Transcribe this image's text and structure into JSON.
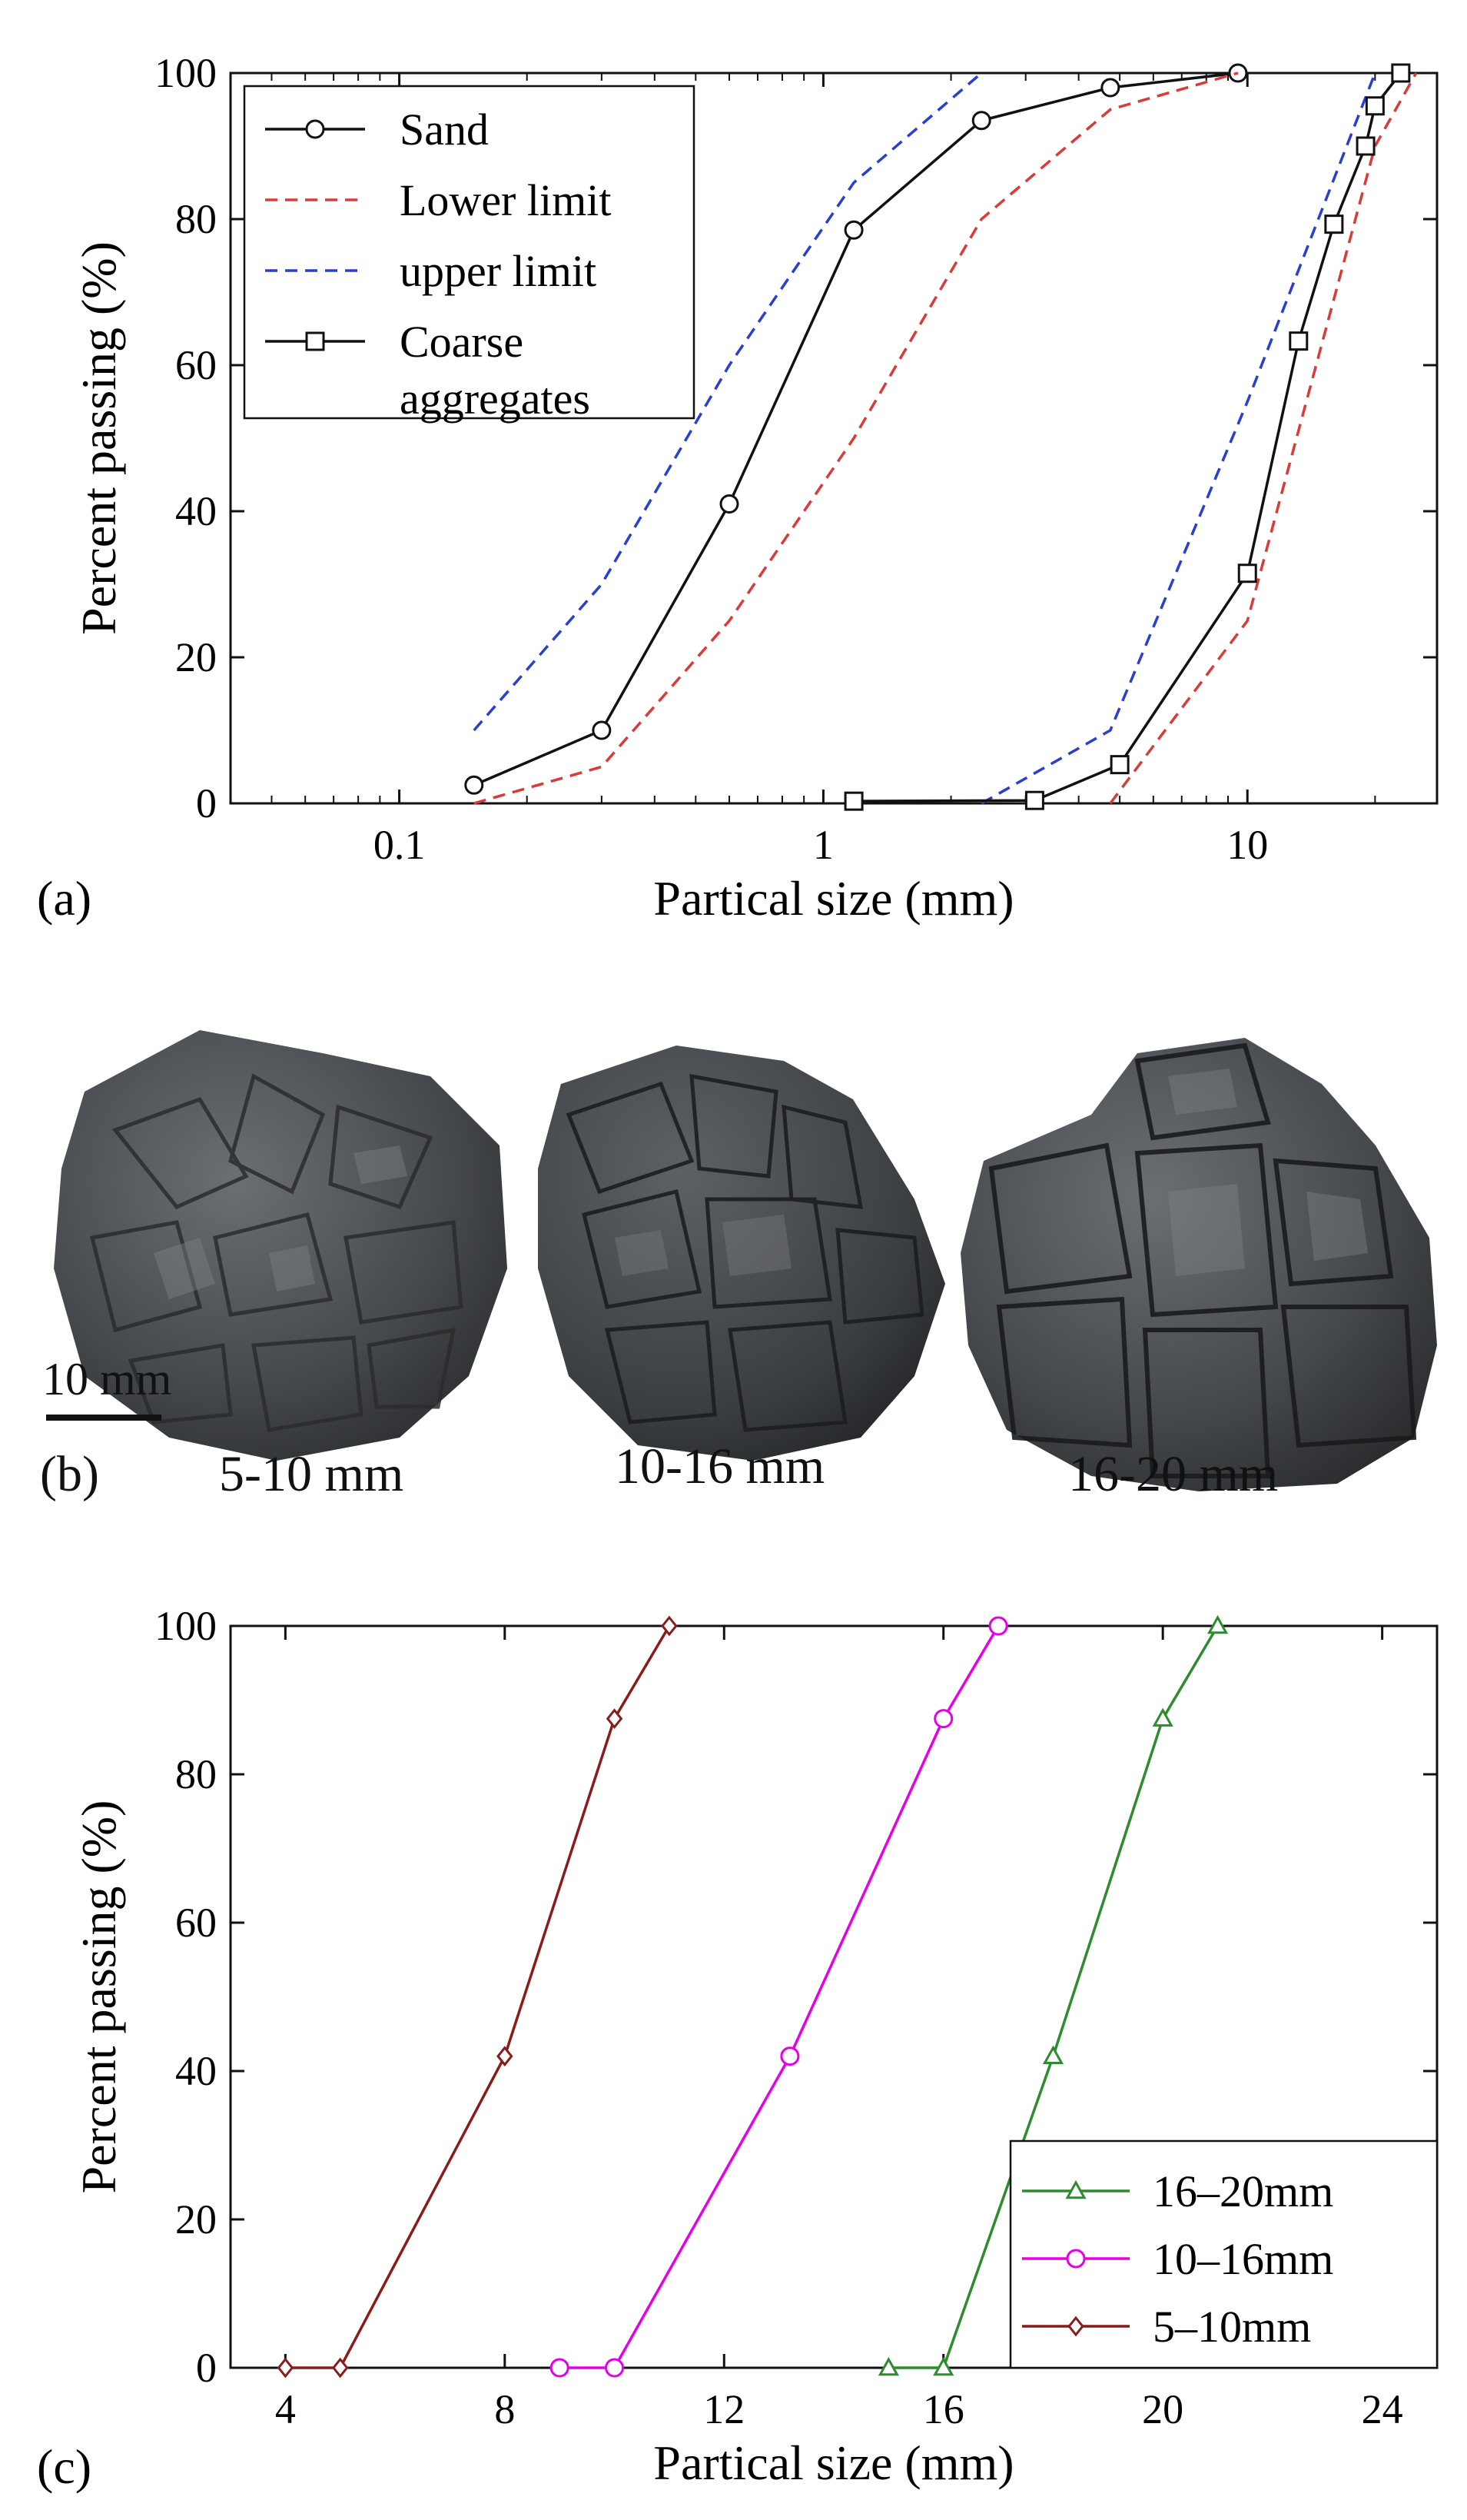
{
  "panel_labels": {
    "a": "(a)",
    "b": "(b)",
    "c": "(c)"
  },
  "chart_data": [
    {
      "id": "a",
      "type": "line",
      "xscale": "log",
      "xlim": [
        0.04,
        28
      ],
      "ylim": [
        0,
        100
      ],
      "xticks": [
        0.1,
        1,
        10
      ],
      "xtick_labels": [
        "0.1",
        "1",
        "10"
      ],
      "yticks": [
        0,
        20,
        40,
        60,
        80,
        100
      ],
      "ytick_labels": [
        "0",
        "20",
        "40",
        "60",
        "80",
        "100"
      ],
      "xlabel": "Partical size (mm)",
      "ylabel": "Percent passing (%)",
      "legend_position": "top-left",
      "series": [
        {
          "name": "Sand",
          "color": "#111111",
          "dash": "solid",
          "marker": "circle",
          "x": [
            0.15,
            0.3,
            0.6,
            1.18,
            2.36,
            4.75,
            9.5
          ],
          "y": [
            2.5,
            10,
            41,
            78.5,
            93.5,
            98,
            100
          ]
        },
        {
          "name": "Lower limit",
          "color": "#d93a3a",
          "dash": "dashed",
          "marker": "none",
          "x": [
            0.15,
            0.3,
            0.6,
            1.18,
            2.36,
            4.75,
            9.5
          ],
          "y": [
            0,
            5,
            25,
            50,
            80,
            95,
            100
          ]
        },
        {
          "name": "upper limit",
          "color": "#2a3fcf",
          "dash": "dashed",
          "marker": "none",
          "x": [
            0.15,
            0.3,
            0.6,
            1.18,
            2.36
          ],
          "y": [
            10,
            30,
            60,
            85,
            100
          ]
        },
        {
          "name": "Lower limit",
          "legend": false,
          "color": "#d93a3a",
          "dash": "dashed",
          "marker": "none",
          "x": [
            4.75,
            10,
            20,
            25
          ],
          "y": [
            0,
            25,
            90,
            100
          ]
        },
        {
          "name": "upper limit",
          "legend": false,
          "color": "#2a3fcf",
          "dash": "dashed",
          "marker": "none",
          "x": [
            2.36,
            4.75,
            10,
            20
          ],
          "y": [
            0,
            10,
            55,
            100
          ]
        },
        {
          "name": "Coarse aggregates",
          "legend_lines": [
            "Coarse",
            "aggregates"
          ],
          "color": "#111111",
          "dash": "solid",
          "marker": "square",
          "x": [
            1.18,
            3.15,
            5,
            10,
            13.2,
            16,
            19,
            20,
            23
          ],
          "y": [
            0.3,
            0.4,
            5.3,
            31.5,
            63.3,
            79.3,
            90,
            95.5,
            100
          ]
        }
      ]
    },
    {
      "id": "c",
      "type": "line",
      "xscale": "linear",
      "xlim": [
        3,
        25
      ],
      "ylim": [
        0,
        100
      ],
      "xticks": [
        4,
        8,
        12,
        16,
        20,
        24
      ],
      "xtick_labels": [
        "4",
        "8",
        "12",
        "16",
        "20",
        "24"
      ],
      "yticks": [
        0,
        20,
        40,
        60,
        80,
        100
      ],
      "ytick_labels": [
        "0",
        "20",
        "40",
        "60",
        "80",
        "100"
      ],
      "xlabel": "Partical size (mm)",
      "ylabel": "Percent passing (%)",
      "legend_position": "bottom-right",
      "series": [
        {
          "name": "16–20mm",
          "color": "#2e8b2e",
          "dash": "solid",
          "marker": "triangle",
          "x": [
            15,
            16,
            18,
            20,
            21
          ],
          "y": [
            0,
            0,
            42,
            87.5,
            100
          ]
        },
        {
          "name": "10–16mm",
          "color": "#e600e6",
          "dash": "solid",
          "marker": "circle",
          "x": [
            9,
            10,
            13.2,
            16,
            17
          ],
          "y": [
            0,
            0,
            42,
            87.5,
            100
          ]
        },
        {
          "name": "5–10mm",
          "color": "#8b1a1a",
          "dash": "solid",
          "marker": "diamond",
          "x": [
            4,
            5,
            8,
            10,
            11
          ],
          "y": [
            0,
            0,
            42,
            87.5,
            100
          ]
        }
      ]
    }
  ],
  "photos": {
    "scale_label": "10 mm",
    "captions": [
      "5-10 mm",
      "10-16 mm",
      "16-20 mm"
    ]
  }
}
